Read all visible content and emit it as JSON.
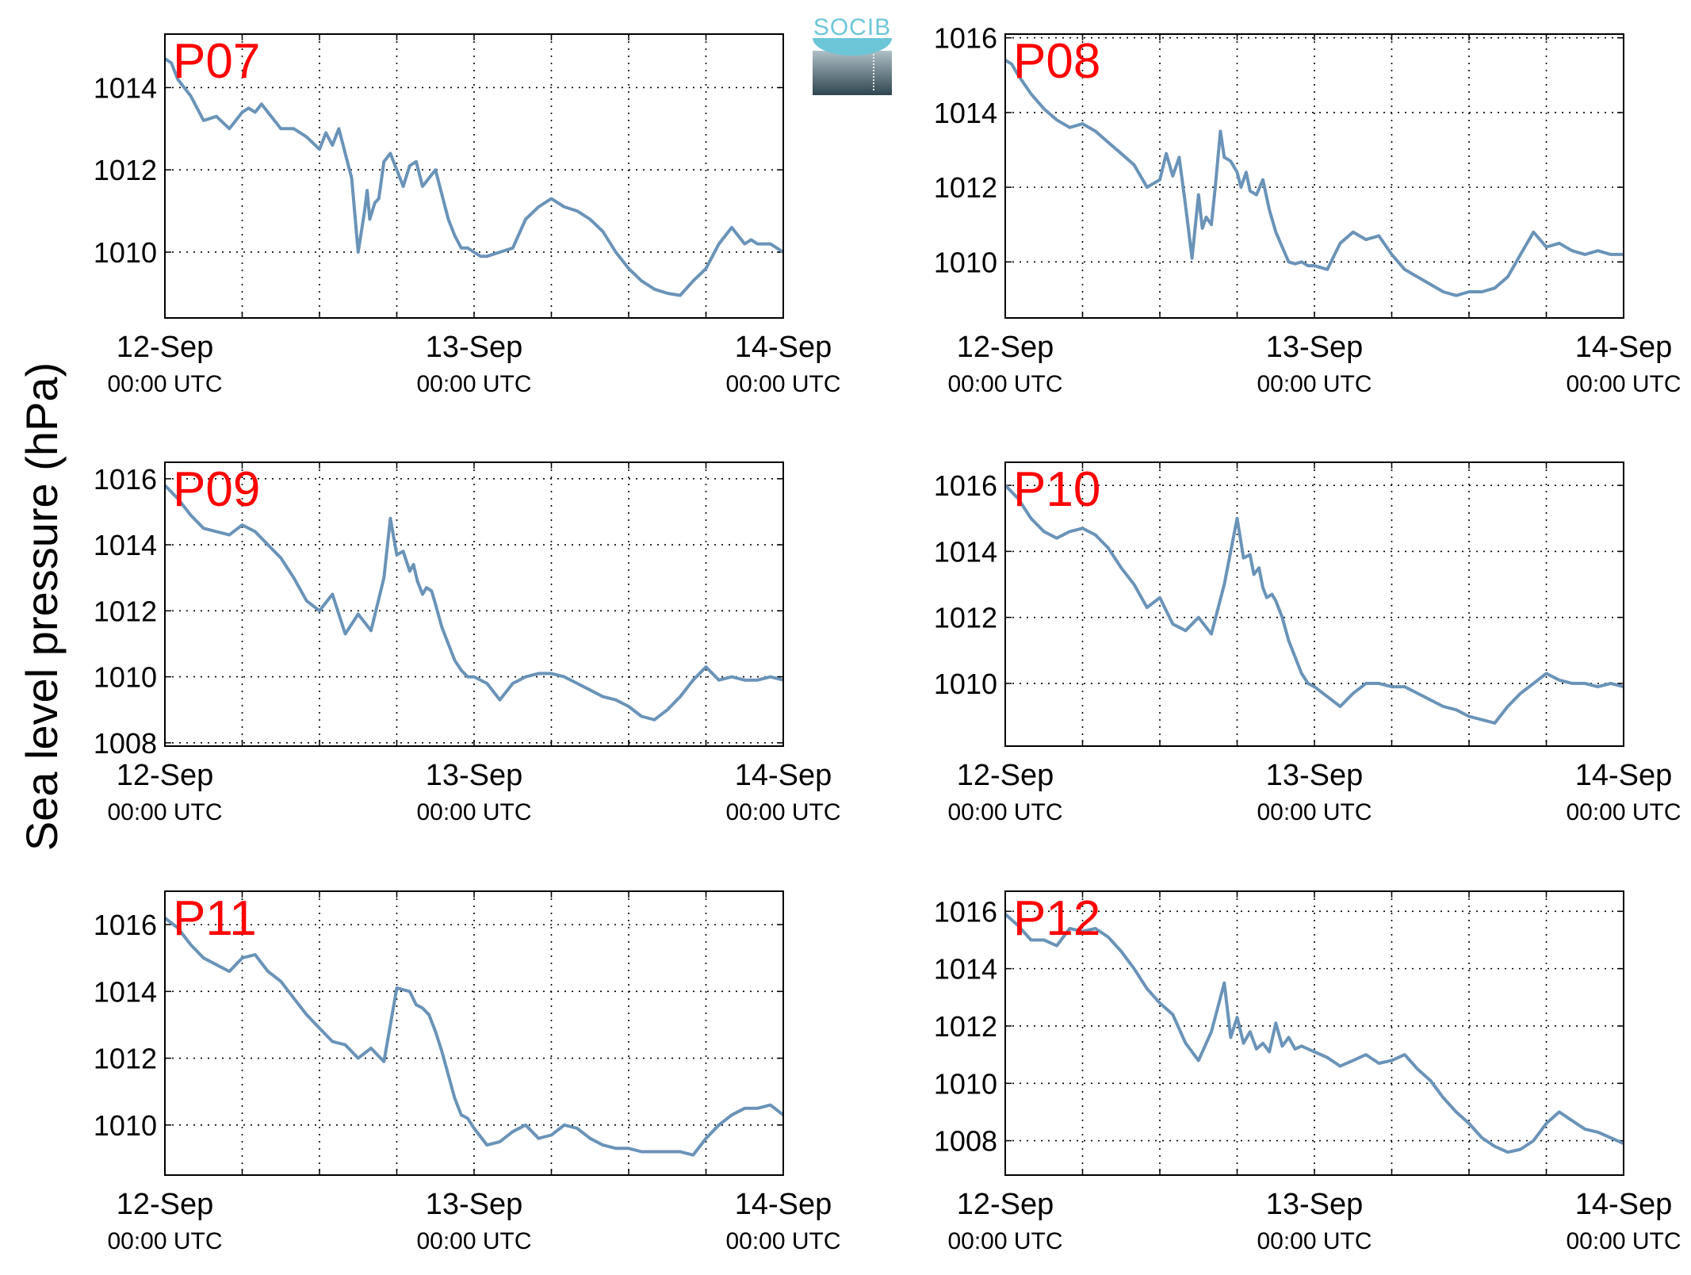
{
  "figure": {
    "ylabel": "Sea level pressure (hPa)",
    "logo_text": "SOCIB"
  },
  "colors": {
    "line": "#6a93b8",
    "station_label": "#ff0000",
    "logo_accent": "#6cc6d8"
  },
  "chart_data": [
    {
      "type": "line",
      "label": "P07",
      "xticks": [
        {
          "line1": "12-Sep",
          "line2": "00:00 UTC"
        },
        {
          "line1": "13-Sep",
          "line2": "00:00 UTC"
        },
        {
          "line1": "14-Sep",
          "line2": "00:00 UTC"
        }
      ],
      "xlim": [
        0,
        48
      ],
      "ylim": [
        1008.4,
        1015.3
      ],
      "yticks": [
        1010,
        1012,
        1014
      ],
      "x": [
        0,
        0.5,
        1,
        2,
        3,
        4,
        5,
        6,
        6.5,
        7,
        7.5,
        8,
        9,
        10,
        11,
        12,
        12.5,
        13,
        13.5,
        14,
        14.5,
        15,
        15.5,
        15.7,
        15.9,
        16.1,
        16.3,
        16.6,
        17,
        17.5,
        18,
        18.5,
        19,
        19.5,
        20,
        20.5,
        21,
        21.5,
        22,
        22.5,
        23,
        23.5,
        24,
        24.5,
        25,
        26,
        27,
        28,
        29,
        30,
        31,
        32,
        33,
        34,
        35,
        36,
        37,
        38,
        39,
        40,
        41,
        42,
        43,
        44,
        45,
        45.5,
        46,
        47,
        48
      ],
      "y": [
        1014.7,
        1014.6,
        1014.2,
        1013.8,
        1013.2,
        1013.3,
        1013.0,
        1013.4,
        1013.5,
        1013.4,
        1013.6,
        1013.4,
        1013.0,
        1013.0,
        1012.8,
        1012.5,
        1012.9,
        1012.6,
        1013.0,
        1012.4,
        1011.8,
        1010.0,
        1011.0,
        1011.5,
        1010.8,
        1011.0,
        1011.2,
        1011.3,
        1012.2,
        1012.4,
        1012.0,
        1011.6,
        1012.1,
        1012.2,
        1011.6,
        1011.8,
        1012.0,
        1011.4,
        1010.8,
        1010.4,
        1010.1,
        1010.1,
        1010.0,
        1009.9,
        1009.9,
        1010.0,
        1010.1,
        1010.8,
        1011.1,
        1011.3,
        1011.1,
        1011.0,
        1010.8,
        1010.5,
        1010.0,
        1009.6,
        1009.3,
        1009.1,
        1009.0,
        1008.95,
        1009.3,
        1009.6,
        1010.2,
        1010.6,
        1010.2,
        1010.3,
        1010.2,
        1010.2,
        1010.0
      ]
    },
    {
      "type": "line",
      "label": "P08",
      "xticks": [
        {
          "line1": "12-Sep",
          "line2": "00:00 UTC"
        },
        {
          "line1": "13-Sep",
          "line2": "00:00 UTC"
        },
        {
          "line1": "14-Sep",
          "line2": "00:00 UTC"
        }
      ],
      "xlim": [
        0,
        48
      ],
      "ylim": [
        1008.5,
        1016.1
      ],
      "yticks": [
        1010,
        1012,
        1014,
        1016
      ],
      "x": [
        0,
        0.5,
        1,
        2,
        3,
        4,
        5,
        6,
        7,
        8,
        9,
        10,
        11,
        12,
        12.5,
        13,
        13.5,
        14,
        14.5,
        15,
        15.3,
        15.6,
        16,
        16.3,
        16.7,
        17,
        17.5,
        18,
        18.3,
        18.7,
        19,
        19.5,
        20,
        20.5,
        21,
        21.5,
        22,
        22.5,
        23,
        23.5,
        24,
        25,
        26,
        27,
        28,
        29,
        30,
        31,
        32,
        33,
        34,
        35,
        36,
        37,
        38,
        39,
        40,
        41,
        42,
        43,
        44,
        45,
        46,
        47,
        48
      ],
      "y": [
        1015.4,
        1015.3,
        1015.0,
        1014.5,
        1014.1,
        1013.8,
        1013.6,
        1013.7,
        1013.5,
        1013.2,
        1012.9,
        1012.6,
        1012.0,
        1012.2,
        1012.9,
        1012.3,
        1012.8,
        1011.5,
        1010.1,
        1011.8,
        1010.9,
        1011.2,
        1011.0,
        1012.0,
        1013.5,
        1012.8,
        1012.7,
        1012.4,
        1012.0,
        1012.4,
        1011.9,
        1011.8,
        1012.2,
        1011.4,
        1010.8,
        1010.4,
        1010.0,
        1009.95,
        1010.0,
        1009.9,
        1009.9,
        1009.8,
        1010.5,
        1010.8,
        1010.6,
        1010.7,
        1010.2,
        1009.8,
        1009.6,
        1009.4,
        1009.2,
        1009.1,
        1009.2,
        1009.2,
        1009.3,
        1009.6,
        1010.2,
        1010.8,
        1010.4,
        1010.5,
        1010.3,
        1010.2,
        1010.3,
        1010.2,
        1010.2
      ]
    },
    {
      "type": "line",
      "label": "P09",
      "xticks": [
        {
          "line1": "12-Sep",
          "line2": "00:00 UTC"
        },
        {
          "line1": "13-Sep",
          "line2": "00:00 UTC"
        },
        {
          "line1": "14-Sep",
          "line2": "00:00 UTC"
        }
      ],
      "xlim": [
        0,
        48
      ],
      "ylim": [
        1007.9,
        1016.5
      ],
      "yticks": [
        1008,
        1010,
        1012,
        1014,
        1016
      ],
      "x": [
        0,
        1,
        2,
        3,
        4,
        5,
        6,
        7,
        8,
        9,
        10,
        11,
        12,
        13,
        14,
        15,
        16,
        17,
        17.5,
        18,
        18.5,
        19,
        19.3,
        19.6,
        20,
        20.3,
        20.7,
        21,
        21.5,
        22,
        22.5,
        23,
        23.5,
        24,
        25,
        26,
        27,
        28,
        29,
        30,
        31,
        32,
        33,
        34,
        35,
        36,
        37,
        38,
        39,
        40,
        41,
        42,
        43,
        44,
        45,
        46,
        47,
        48
      ],
      "y": [
        1015.8,
        1015.4,
        1014.9,
        1014.5,
        1014.4,
        1014.3,
        1014.6,
        1014.4,
        1014.0,
        1013.6,
        1013.0,
        1012.3,
        1012.0,
        1012.5,
        1011.3,
        1011.9,
        1011.4,
        1013.0,
        1014.8,
        1013.7,
        1013.8,
        1013.2,
        1013.4,
        1012.9,
        1012.5,
        1012.7,
        1012.6,
        1012.2,
        1011.5,
        1011.0,
        1010.5,
        1010.2,
        1010.0,
        1010.0,
        1009.8,
        1009.3,
        1009.8,
        1010.0,
        1010.1,
        1010.1,
        1010.0,
        1009.8,
        1009.6,
        1009.4,
        1009.3,
        1009.1,
        1008.8,
        1008.7,
        1009.0,
        1009.4,
        1009.9,
        1010.3,
        1009.9,
        1010.0,
        1009.9,
        1009.9,
        1010.0,
        1009.9
      ]
    },
    {
      "type": "line",
      "label": "P10",
      "xticks": [
        {
          "line1": "12-Sep",
          "line2": "00:00 UTC"
        },
        {
          "line1": "13-Sep",
          "line2": "00:00 UTC"
        },
        {
          "line1": "14-Sep",
          "line2": "00:00 UTC"
        }
      ],
      "xlim": [
        0,
        48
      ],
      "ylim": [
        1008.1,
        1016.7
      ],
      "yticks": [
        1010,
        1012,
        1014,
        1016
      ],
      "x": [
        0,
        1,
        2,
        3,
        4,
        5,
        6,
        7,
        8,
        9,
        10,
        11,
        12,
        13,
        14,
        15,
        16,
        17,
        18,
        18.5,
        19,
        19.3,
        19.7,
        20,
        20.3,
        20.7,
        21,
        21.5,
        22,
        22.5,
        23,
        23.5,
        24,
        25,
        26,
        27,
        28,
        29,
        30,
        31,
        32,
        33,
        34,
        35,
        36,
        37,
        38,
        39,
        40,
        41,
        42,
        43,
        44,
        45,
        46,
        47,
        48
      ],
      "y": [
        1016.0,
        1015.6,
        1015.0,
        1014.6,
        1014.4,
        1014.6,
        1014.7,
        1014.5,
        1014.1,
        1013.5,
        1013.0,
        1012.3,
        1012.6,
        1011.8,
        1011.6,
        1012.0,
        1011.5,
        1013.0,
        1015.0,
        1013.8,
        1013.9,
        1013.3,
        1013.5,
        1012.9,
        1012.6,
        1012.7,
        1012.5,
        1012.0,
        1011.3,
        1010.8,
        1010.3,
        1010.0,
        1009.9,
        1009.6,
        1009.3,
        1009.7,
        1010.0,
        1010.0,
        1009.9,
        1009.9,
        1009.7,
        1009.5,
        1009.3,
        1009.2,
        1009.0,
        1008.9,
        1008.8,
        1009.3,
        1009.7,
        1010.0,
        1010.3,
        1010.1,
        1010.0,
        1010.0,
        1009.9,
        1010.0,
        1009.9
      ]
    },
    {
      "type": "line",
      "label": "P11",
      "xticks": [
        {
          "line1": "12-Sep",
          "line2": "00:00 UTC"
        },
        {
          "line1": "13-Sep",
          "line2": "00:00 UTC"
        },
        {
          "line1": "14-Sep",
          "line2": "00:00 UTC"
        }
      ],
      "xlim": [
        0,
        48
      ],
      "ylim": [
        1008.5,
        1017.0
      ],
      "yticks": [
        1010,
        1012,
        1014,
        1016
      ],
      "x": [
        0,
        1,
        2,
        3,
        4,
        5,
        6,
        7,
        8,
        9,
        10,
        11,
        12,
        13,
        14,
        15,
        16,
        17,
        18,
        19,
        19.5,
        20,
        20.5,
        21,
        21.5,
        22,
        22.5,
        23,
        23.5,
        24,
        25,
        26,
        27,
        28,
        29,
        30,
        31,
        32,
        33,
        34,
        35,
        36,
        37,
        38,
        39,
        40,
        41,
        42,
        43,
        44,
        45,
        46,
        47,
        48
      ],
      "y": [
        1016.2,
        1015.9,
        1015.4,
        1015.0,
        1014.8,
        1014.6,
        1015.0,
        1015.1,
        1014.6,
        1014.3,
        1013.8,
        1013.3,
        1012.9,
        1012.5,
        1012.4,
        1012.0,
        1012.3,
        1011.9,
        1014.1,
        1014.0,
        1013.6,
        1013.5,
        1013.3,
        1012.8,
        1012.2,
        1011.5,
        1010.8,
        1010.3,
        1010.2,
        1009.9,
        1009.4,
        1009.5,
        1009.8,
        1010.0,
        1009.6,
        1009.7,
        1010.0,
        1009.9,
        1009.6,
        1009.4,
        1009.3,
        1009.3,
        1009.2,
        1009.2,
        1009.2,
        1009.2,
        1009.1,
        1009.6,
        1010.0,
        1010.3,
        1010.5,
        1010.5,
        1010.6,
        1010.3
      ]
    },
    {
      "type": "line",
      "label": "P12",
      "xticks": [
        {
          "line1": "12-Sep",
          "line2": "00:00 UTC"
        },
        {
          "line1": "13-Sep",
          "line2": "00:00 UTC"
        },
        {
          "line1": "14-Sep",
          "line2": "00:00 UTC"
        }
      ],
      "xlim": [
        0,
        48
      ],
      "ylim": [
        1006.8,
        1016.7
      ],
      "yticks": [
        1008,
        1010,
        1012,
        1014,
        1016
      ],
      "x": [
        0,
        1,
        2,
        3,
        4,
        5,
        6,
        7,
        8,
        9,
        10,
        11,
        12,
        13,
        14,
        15,
        16,
        17,
        17.5,
        18,
        18.5,
        19,
        19.5,
        20,
        20.5,
        21,
        21.5,
        22,
        22.5,
        23,
        23.5,
        24,
        25,
        26,
        27,
        28,
        29,
        30,
        31,
        32,
        33,
        34,
        35,
        36,
        37,
        38,
        39,
        40,
        41,
        42,
        43,
        44,
        45,
        46,
        47,
        48
      ],
      "y": [
        1015.9,
        1015.5,
        1015.0,
        1015.0,
        1014.8,
        1015.4,
        1015.3,
        1015.4,
        1015.1,
        1014.6,
        1014.0,
        1013.3,
        1012.8,
        1012.4,
        1011.4,
        1010.8,
        1011.8,
        1013.5,
        1011.6,
        1012.3,
        1011.4,
        1011.8,
        1011.2,
        1011.4,
        1011.1,
        1012.1,
        1011.3,
        1011.6,
        1011.2,
        1011.3,
        1011.2,
        1011.1,
        1010.9,
        1010.6,
        1010.8,
        1011.0,
        1010.7,
        1010.8,
        1011.0,
        1010.5,
        1010.1,
        1009.5,
        1009.0,
        1008.6,
        1008.1,
        1007.8,
        1007.6,
        1007.7,
        1008.0,
        1008.6,
        1009.0,
        1008.7,
        1008.4,
        1008.3,
        1008.1,
        1007.9
      ]
    }
  ]
}
